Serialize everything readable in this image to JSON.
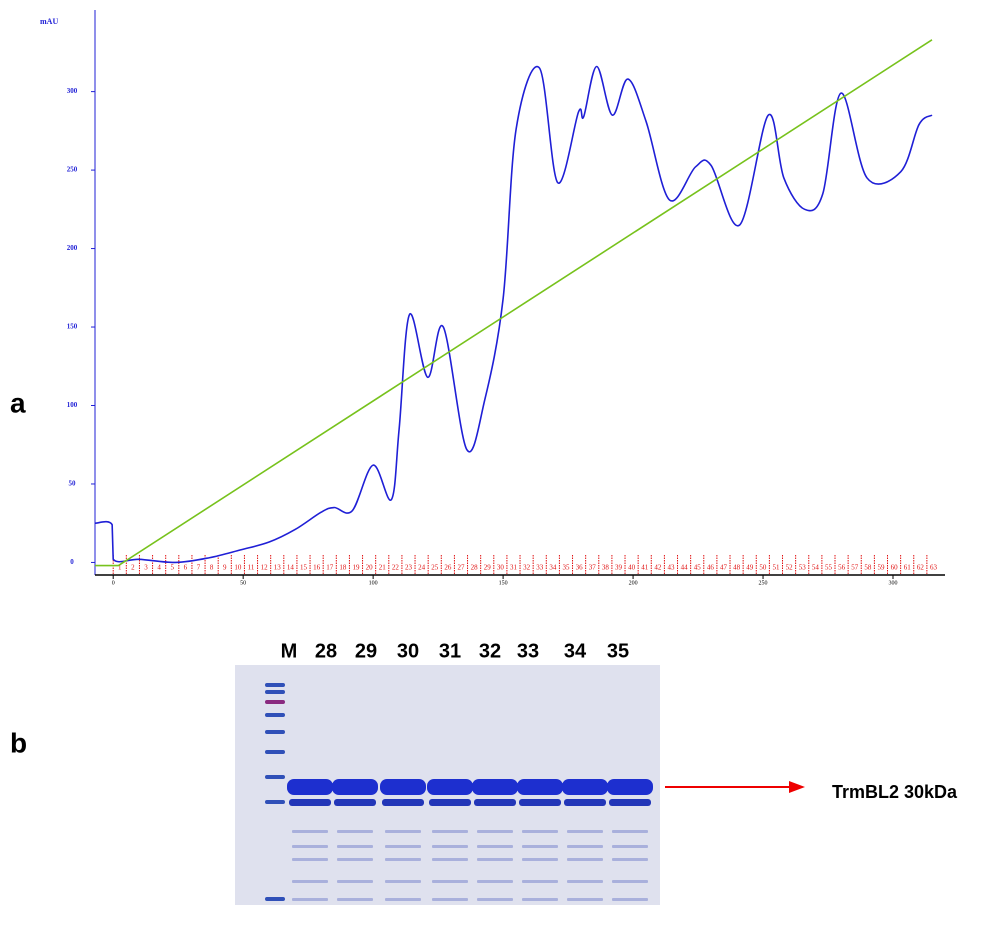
{
  "panel_labels": [
    "a",
    "b"
  ],
  "chart_data": {
    "type": "line",
    "y_label": "mAU",
    "xlim": [
      -7,
      320
    ],
    "ylim": [
      -8,
      352
    ],
    "xticks": [
      0,
      50,
      100,
      150,
      200,
      250,
      300
    ],
    "yticks": [
      0,
      50,
      100,
      150,
      200,
      250,
      300
    ],
    "series": [
      {
        "color": "#1f1fd6",
        "x": [
          -7,
          -0.4,
          0,
          10,
          24,
          37,
          49,
          60,
          70,
          80,
          85,
          92,
          100,
          107,
          110,
          114,
          121,
          127,
          136,
          143,
          150,
          155,
          164,
          171,
          179,
          181,
          186,
          192,
          198,
          205,
          214,
          224,
          230,
          241,
          252,
          258,
          266,
          273,
          280,
          290,
          303,
          310,
          315
        ],
        "values": [
          25,
          24,
          2,
          2,
          0,
          3,
          8,
          13,
          21,
          32,
          35,
          33,
          62,
          40,
          85,
          158,
          118,
          150,
          72,
          104,
          168,
          276,
          315,
          242,
          287,
          284,
          316,
          285,
          308,
          281,
          231,
          252,
          253,
          215,
          285,
          245,
          225,
          235,
          299,
          245,
          249,
          279,
          285
        ]
      },
      {
        "color": "#77c21c",
        "x": [
          -7,
          2,
          315
        ],
        "values": [
          -2,
          -2,
          333
        ]
      }
    ],
    "fractions": [
      1,
      2,
      3,
      4,
      5,
      6,
      7,
      8,
      9,
      10,
      11,
      12,
      13,
      14,
      15,
      16,
      17,
      18,
      19,
      20,
      21,
      22,
      23,
      24,
      25,
      26,
      27,
      28,
      29,
      30,
      31,
      32,
      33,
      34,
      35,
      36,
      37,
      38,
      39,
      40,
      41,
      42,
      43,
      44,
      45,
      46,
      47,
      48,
      49,
      50,
      51,
      52,
      53,
      54,
      55,
      56,
      57,
      58,
      59,
      60,
      61,
      62,
      63
    ],
    "fraction_color": "#e01010"
  },
  "gel": {
    "lanes": [
      "M",
      "28",
      "29",
      "30",
      "31",
      "32",
      "33",
      "34",
      "35"
    ],
    "annotation": "TrmBL2 30kDa"
  }
}
